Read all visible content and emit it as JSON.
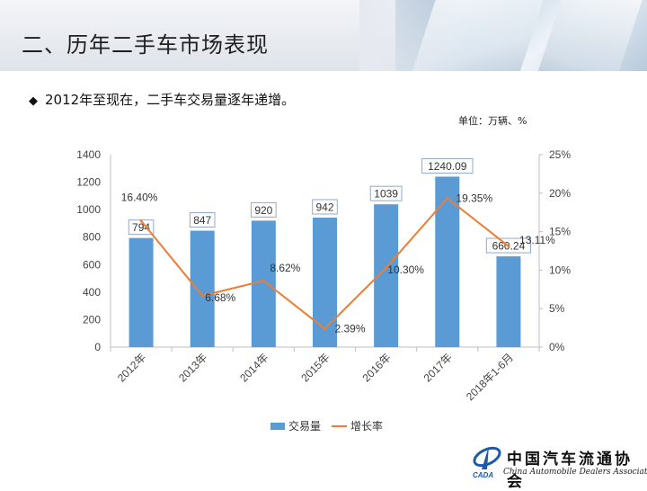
{
  "slide": {
    "title": "二、历年二手车市场表现",
    "bullet": "2012年至现在，二手车交易量逐年递增。",
    "unit": "单位：万辆、%"
  },
  "logo": {
    "abbr": "CADA",
    "cn": "中国汽车流通协会",
    "en": "China Automobile Dealers Association"
  },
  "colors": {
    "bar": "#5b9bd5",
    "line": "#ed7d31"
  },
  "chart_data": {
    "type": "bar",
    "categories": [
      "2012年",
      "2013年",
      "2014年",
      "2015年",
      "2016年",
      "2017年",
      "2018年1-6月"
    ],
    "series": [
      {
        "name": "交易量",
        "type": "bar",
        "axis": "left",
        "values": [
          794,
          847,
          920,
          942,
          1039,
          1240.09,
          660.24
        ],
        "labels": [
          "794",
          "847",
          "920",
          "942",
          "1039",
          "1240.09",
          "660.24"
        ]
      },
      {
        "name": "增长率",
        "type": "line",
        "axis": "right",
        "values": [
          16.4,
          6.68,
          8.62,
          2.39,
          10.3,
          19.35,
          13.11
        ],
        "labels": [
          "16.40%",
          "6.68%",
          "8.62%",
          "2.39%",
          "10.30%",
          "19.35%",
          "13.11%"
        ]
      }
    ],
    "y_left": {
      "range": [
        0,
        1400
      ],
      "ticks": [
        "0",
        "200",
        "400",
        "600",
        "800",
        "1000",
        "1200",
        "1400"
      ]
    },
    "y_right": {
      "range": [
        0,
        25
      ],
      "ticks": [
        "0%",
        "5%",
        "10%",
        "15%",
        "20%",
        "25%"
      ]
    },
    "grid": false,
    "legend": "bottom"
  }
}
